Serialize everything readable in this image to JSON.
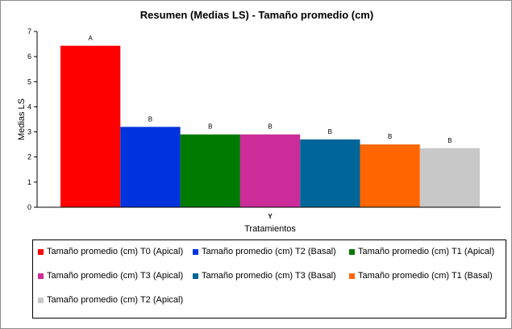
{
  "chart_data": {
    "type": "bar",
    "title": "Resumen (Medias LS) - Tamaño promedio (cm)",
    "xlabel": "Tratamientos",
    "ylabel": "Medias LS",
    "category_label": "Y",
    "ylim": [
      0,
      7
    ],
    "yticks": [
      0,
      1,
      2,
      3,
      4,
      5,
      6,
      7
    ],
    "grid": false,
    "legend_position": "bottom",
    "series": [
      {
        "name": "Tamaño promedio (cm) T0 (Apical)",
        "value": 6.43,
        "group": "A",
        "color": "#ff0000"
      },
      {
        "name": "Tamaño promedio (cm) T2 (Basal)",
        "value": 3.2,
        "group": "B",
        "color": "#0033dd"
      },
      {
        "name": "Tamaño promedio (cm) T1 (Apical)",
        "value": 2.9,
        "group": "B",
        "color": "#007a00"
      },
      {
        "name": "Tamaño promedio (cm) T3 (Apical)",
        "value": 2.9,
        "group": "B",
        "color": "#cc2c99"
      },
      {
        "name": "Tamaño promedio (cm) T3 (Basal)",
        "value": 2.7,
        "group": "B",
        "color": "#006699"
      },
      {
        "name": "Tamaño promedio (cm) T1 (Basal)",
        "value": 2.5,
        "group": "B",
        "color": "#ff6600"
      },
      {
        "name": "Tamaño promedio (cm) T2 (Apical)",
        "value": 2.35,
        "group": "B",
        "color": "#c8c8c8"
      }
    ]
  }
}
